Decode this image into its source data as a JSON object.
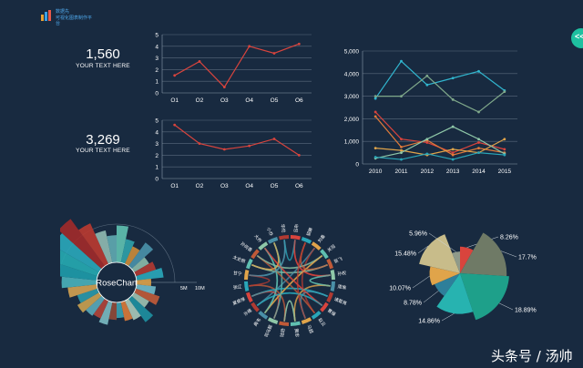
{
  "logo": {
    "line1": "数据先",
    "line2": "可视化图表制作平台"
  },
  "kpis": [
    {
      "value": "1,560",
      "label": "YOUR TEXT HERE"
    },
    {
      "value": "3,269",
      "label": "YOUR TEXT HERE"
    }
  ],
  "nav_button": {
    "icon": "double-chevron-left-icon",
    "label": "<<"
  },
  "watermark": "头条号 / 汤帅",
  "colors": {
    "background": "#182a40",
    "accent_teal": "#1ec0a0",
    "line_red": "#d9443d"
  },
  "chart_data": [
    {
      "type": "line",
      "categories": [
        "Q1",
        "Q2",
        "Q3",
        "Q4",
        "Q5",
        "Q6"
      ],
      "series": [
        {
          "values": [
            1.5,
            2.7,
            0.5,
            4.0,
            3.4,
            4.2
          ],
          "color": "#d9443d"
        }
      ],
      "ylim": [
        0,
        5
      ],
      "yticks": [
        0,
        1,
        2,
        3,
        4,
        5
      ],
      "grid": true
    },
    {
      "type": "line",
      "categories": [
        "Q1",
        "Q2",
        "Q3",
        "Q4",
        "Q5",
        "Q6"
      ],
      "series": [
        {
          "values": [
            4.6,
            3.0,
            2.5,
            2.8,
            3.4,
            2.0
          ],
          "color": "#d9443d"
        }
      ],
      "ylim": [
        0,
        5
      ],
      "yticks": [
        0,
        1,
        2,
        3,
        4,
        5
      ],
      "grid": true
    },
    {
      "type": "line",
      "categories": [
        "2010",
        "2011",
        "2012",
        "2013",
        "2014",
        "2015"
      ],
      "ylim": [
        0,
        5000
      ],
      "yticks": [
        "0",
        "1,000",
        "2,000",
        "3,000",
        "4,000",
        "5,000"
      ],
      "grid": true,
      "series": [
        {
          "values": [
            2900,
            4550,
            3500,
            3800,
            4100,
            3250
          ],
          "color": "#31b6cf"
        },
        {
          "values": [
            3000,
            3000,
            3900,
            2850,
            2300,
            3200
          ],
          "color": "#7fa88a"
        },
        {
          "values": [
            2300,
            1100,
            950,
            500,
            950,
            650
          ],
          "color": "#d9443d"
        },
        {
          "values": [
            2100,
            750,
            1050,
            400,
            700,
            500
          ],
          "color": "#e07a3a"
        },
        {
          "values": [
            700,
            600,
            400,
            650,
            500,
            1100
          ],
          "color": "#e0a44a"
        },
        {
          "values": [
            250,
            500,
            1100,
            1650,
            1100,
            450
          ],
          "color": "#8fc8a8"
        },
        {
          "values": [
            300,
            200,
            450,
            200,
            500,
            400
          ],
          "color": "#2aa6b8"
        }
      ]
    },
    {
      "type": "pie",
      "title": "RoseChart",
      "axis_labels": [
        "5M",
        "10M"
      ],
      "values": [
        38,
        25,
        20,
        30,
        18,
        22,
        28,
        15,
        20,
        26,
        18,
        30,
        22,
        20,
        16,
        18,
        24,
        20,
        22,
        26,
        22,
        30,
        36,
        42,
        48,
        55,
        60,
        46,
        34,
        28
      ],
      "colors": [
        "#5fbfb0",
        "#2fa0a8",
        "#c98a3a",
        "#4a90a8",
        "#8ab8a8",
        "#b03a32",
        "#2aa6b8",
        "#d9a04a",
        "#6fb8c8",
        "#c05a38",
        "#9cc0b0",
        "#1e8fa0",
        "#a8c8b8",
        "#d97a3a",
        "#3aa0b0",
        "#8f4a38",
        "#7ab8c0",
        "#b0443a",
        "#5aa8b8",
        "#c8a050",
        "#2a98a8",
        "#d0a050",
        "#4ab0b8",
        "#1e9aa8",
        "#26a8b0",
        "#2aa6b8",
        "#a02a2a",
        "#b83a30",
        "#8fb8b0",
        "#5fa8b0"
      ]
    },
    {
      "type": "chord",
      "labels": [
        "吕布",
        "貂蝉",
        "刘备",
        "关羽",
        "张飞",
        "孙权",
        "周瑜",
        "诸葛亮",
        "曹操",
        "赵云",
        "马超",
        "黄忠",
        "陆逊",
        "司马懿",
        "典韦",
        "许褚",
        "夏侯惇",
        "张辽",
        "甘宁",
        "太史慈",
        "孙尚香",
        "大乔",
        "小乔",
        "华佗"
      ]
    },
    {
      "type": "pie",
      "values": [
        8.26,
        17.7,
        18.89,
        14.86,
        8.78,
        10.07,
        15.48,
        5.96
      ],
      "labels": [
        "8.26%",
        "17.7%",
        "18.89%",
        "14.86%",
        "8.78%",
        "10.07%",
        "15.48%",
        "5.96%"
      ],
      "colors": [
        "#d9443d",
        "#6f7a66",
        "#1ea08a",
        "#27b3b0",
        "#2e7f9a",
        "#e0a44a",
        "#c8bc8a",
        "#8f9a8a"
      ]
    }
  ]
}
